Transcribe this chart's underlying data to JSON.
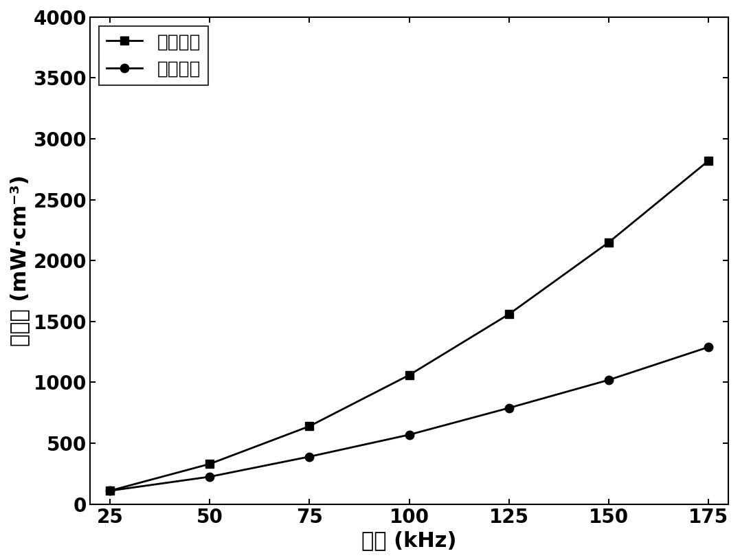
{
  "x": [
    25,
    50,
    75,
    100,
    125,
    150,
    175
  ],
  "series1_label": "磷酸包覆",
  "series1_y": [
    110,
    330,
    640,
    1060,
    1560,
    2150,
    2820
  ],
  "series1_color": "#000000",
  "series1_marker": "s",
  "series2_label": "原位镡化",
  "series2_y": [
    110,
    225,
    390,
    570,
    790,
    1020,
    1290
  ],
  "series2_color": "#000000",
  "series2_marker": "o",
  "xlabel": "频率 (kHz)",
  "ylabel": "磁损耗 (mW·cm⁻³)",
  "ylim": [
    0,
    4000
  ],
  "xlim": [
    20,
    180
  ],
  "yticks": [
    0,
    500,
    1000,
    1500,
    2000,
    2500,
    3000,
    3500,
    4000
  ],
  "xticks": [
    25,
    50,
    75,
    100,
    125,
    150,
    175
  ],
  "linewidth": 2.0,
  "markersize": 9,
  "label_fontsize": 22,
  "tick_fontsize": 20,
  "legend_fontsize": 19,
  "background_color": "#ffffff"
}
